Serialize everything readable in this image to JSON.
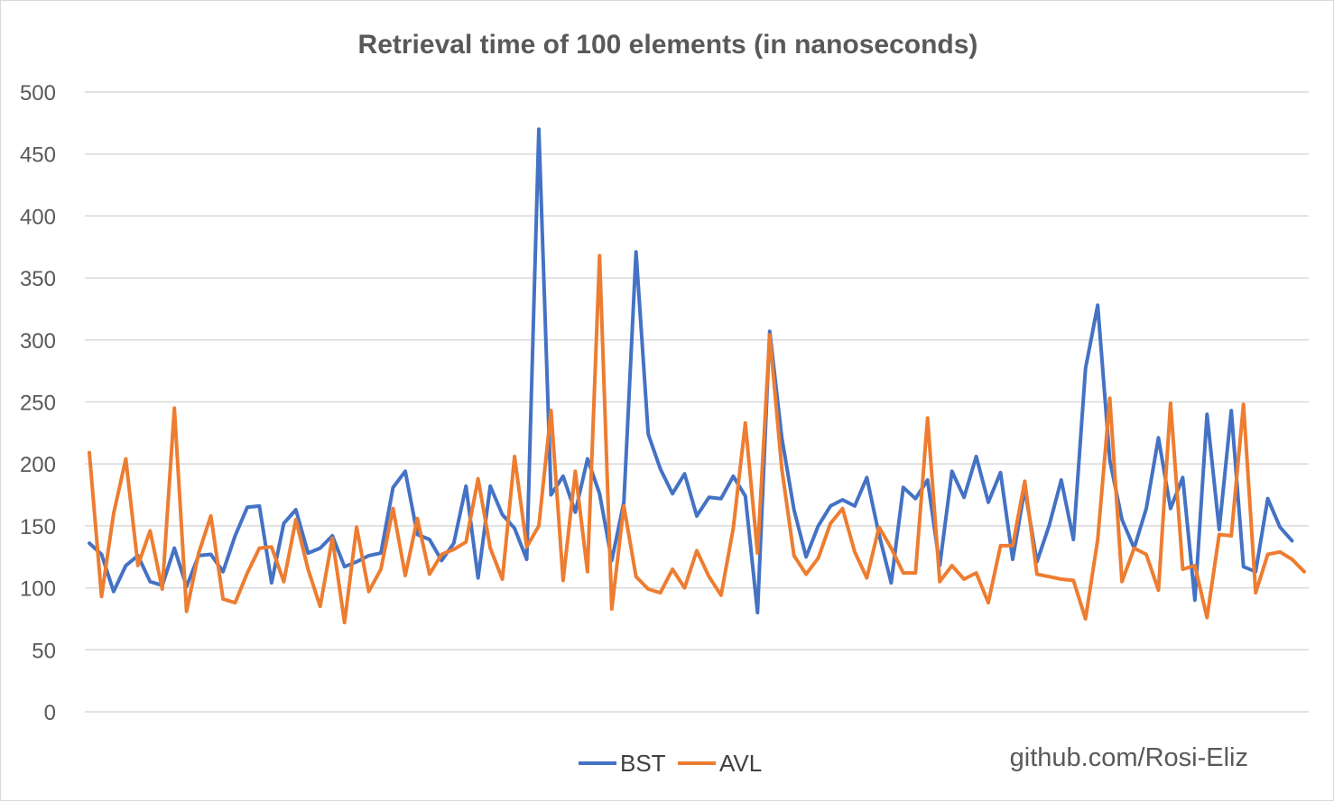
{
  "chart_data": {
    "type": "line",
    "title": "Retrieval time of 100 elements (in nanoseconds)",
    "xlabel": "",
    "ylabel": "",
    "ylim": [
      0,
      500
    ],
    "yticks": [
      "0",
      "50",
      "100",
      "150",
      "200",
      "250",
      "300",
      "350",
      "400",
      "450",
      "500"
    ],
    "grid": true,
    "legend_position": "bottom",
    "annotation": "github.com/Rosi-Eliz",
    "x": [
      1,
      2,
      3,
      4,
      5,
      6,
      7,
      8,
      9,
      10,
      11,
      12,
      13,
      14,
      15,
      16,
      17,
      18,
      19,
      20,
      21,
      22,
      23,
      24,
      25,
      26,
      27,
      28,
      29,
      30,
      31,
      32,
      33,
      34,
      35,
      36,
      37,
      38,
      39,
      40,
      41,
      42,
      43,
      44,
      45,
      46,
      47,
      48,
      49,
      50,
      51,
      52,
      53,
      54,
      55,
      56,
      57,
      58,
      59,
      60,
      61,
      62,
      63,
      64,
      65,
      66,
      67,
      68,
      69,
      70,
      71,
      72,
      73,
      74,
      75,
      76,
      77,
      78,
      79,
      80,
      81,
      82,
      83,
      84,
      85,
      86,
      87,
      88,
      89,
      90,
      91,
      92,
      93,
      94,
      95,
      96,
      97,
      98,
      99,
      100,
      101
    ],
    "series": [
      {
        "name": "BST",
        "color": "#4472c4",
        "values": [
          136,
          127,
          97,
          118,
          126,
          105,
          102,
          132,
          101,
          126,
          127,
          113,
          142,
          165,
          166,
          104,
          152,
          163,
          128,
          132,
          142,
          117,
          121,
          126,
          128,
          181,
          194,
          143,
          139,
          122,
          136,
          182,
          108,
          182,
          159,
          148,
          123,
          470,
          175,
          190,
          161,
          204,
          176,
          122,
          169,
          371,
          224,
          196,
          176,
          192,
          158,
          173,
          172,
          190,
          174,
          80,
          307,
          221,
          163,
          125,
          150,
          166,
          171,
          166,
          189,
          143,
          104,
          181,
          172,
          187,
          118,
          194,
          173,
          206,
          169,
          193,
          123,
          180,
          121,
          150,
          187,
          139,
          277,
          328,
          203,
          155,
          132,
          164,
          221,
          164,
          189,
          90,
          240,
          147,
          243,
          117,
          113,
          172,
          149,
          138,
          null
        ]
      },
      {
        "name": "AVL",
        "color": "#ed7d31",
        "values": [
          209,
          93,
          160,
          204,
          118,
          146,
          99,
          245,
          81,
          128,
          158,
          91,
          88,
          112,
          132,
          133,
          105,
          155,
          115,
          85,
          140,
          72,
          149,
          97,
          115,
          164,
          110,
          156,
          111,
          127,
          131,
          137,
          188,
          132,
          107,
          206,
          133,
          150,
          243,
          106,
          194,
          113,
          368,
          83,
          166,
          109,
          99,
          96,
          115,
          100,
          130,
          109,
          94,
          148,
          233,
          128,
          304,
          196,
          126,
          111,
          124,
          152,
          164,
          129,
          108,
          149,
          132,
          112,
          112,
          237,
          105,
          118,
          107,
          112,
          88,
          134,
          134,
          186,
          111,
          109,
          107,
          106,
          75,
          139,
          253,
          105,
          132,
          127,
          98,
          249,
          115,
          118,
          76,
          143,
          142,
          248,
          96,
          127,
          129,
          123,
          113
        ]
      }
    ]
  }
}
